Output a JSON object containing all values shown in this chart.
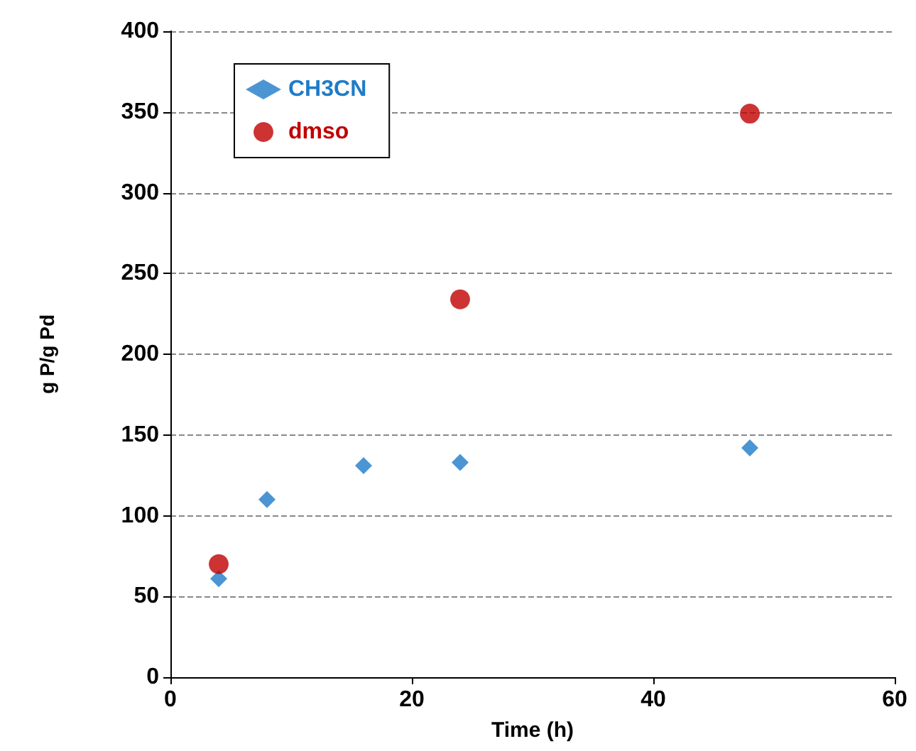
{
  "chart_data": {
    "type": "scatter",
    "xlabel": "Time (h)",
    "ylabel": "g P/g Pd",
    "series": [
      {
        "name": "CH3CN",
        "color": "#1f7bc8",
        "marker": "diamond",
        "x": [
          4,
          8,
          16,
          24,
          48
        ],
        "values": [
          61,
          110,
          131,
          133,
          142
        ]
      },
      {
        "name": "dmso",
        "color": "#c00000",
        "marker": "circle",
        "x": [
          4,
          24,
          48
        ],
        "values": [
          70,
          234,
          349
        ]
      }
    ],
    "xlim": [
      0,
      60
    ],
    "xticks": [
      0,
      20,
      40,
      60
    ],
    "ylim": [
      0,
      400
    ],
    "yticks": [
      0,
      50,
      100,
      150,
      200,
      250,
      300,
      350,
      400
    ],
    "grid": "y",
    "legend": "top left"
  }
}
